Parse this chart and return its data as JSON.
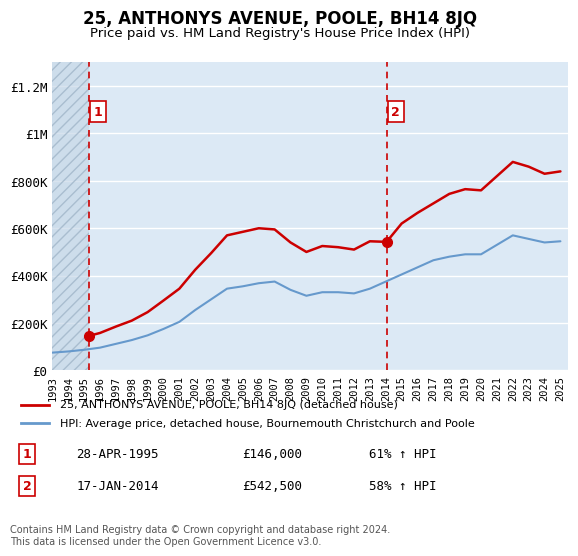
{
  "title": "25, ANTHONYS AVENUE, POOLE, BH14 8JQ",
  "subtitle": "Price paid vs. HM Land Registry's House Price Index (HPI)",
  "ylabel": "",
  "ylim": [
    0,
    1300000
  ],
  "yticks": [
    0,
    200000,
    400000,
    600000,
    800000,
    1000000,
    1200000
  ],
  "ytick_labels": [
    "£0",
    "£200K",
    "£400K",
    "£600K",
    "£800K",
    "£1M",
    "£1.2M"
  ],
  "background_color": "#ffffff",
  "plot_bg_color": "#dce9f5",
  "hatch_color": "#b0c4d8",
  "legend_label_red": "25, ANTHONYS AVENUE, POOLE, BH14 8JQ (detached house)",
  "legend_label_blue": "HPI: Average price, detached house, Bournemouth Christchurch and Poole",
  "sale1_date": "28-APR-1995",
  "sale1_price": 146000,
  "sale1_hpi": "61% ↑ HPI",
  "sale2_date": "17-JAN-2014",
  "sale2_price": 542500,
  "sale2_hpi": "58% ↑ HPI",
  "footnote": "Contains HM Land Registry data © Crown copyright and database right 2024.\nThis data is licensed under the Open Government Licence v3.0.",
  "red_color": "#cc0000",
  "blue_color": "#6699cc",
  "sale_marker_color": "#cc0000",
  "vline_color": "#cc0000",
  "x_start_year": 1993.0,
  "x_end_year": 2025.5,
  "hpi_line": {
    "years": [
      1993,
      1994,
      1995,
      1996,
      1997,
      1998,
      1999,
      2000,
      2001,
      2002,
      2003,
      2004,
      2005,
      2006,
      2007,
      2008,
      2009,
      2010,
      2011,
      2012,
      2013,
      2014,
      2015,
      2016,
      2017,
      2018,
      2019,
      2020,
      2021,
      2022,
      2023,
      2024,
      2025
    ],
    "values": [
      75000,
      80000,
      87000,
      96000,
      112000,
      128000,
      148000,
      175000,
      205000,
      255000,
      300000,
      345000,
      355000,
      368000,
      375000,
      340000,
      315000,
      330000,
      330000,
      325000,
      345000,
      375000,
      405000,
      435000,
      465000,
      480000,
      490000,
      490000,
      530000,
      570000,
      555000,
      540000,
      545000
    ]
  },
  "property_line": {
    "years": [
      1995.32,
      1996,
      1997,
      1998,
      1999,
      2000,
      2001,
      2002,
      2003,
      2004,
      2005,
      2006,
      2007,
      2008,
      2009,
      2010,
      2011,
      2012,
      2013,
      2014.05,
      2015,
      2016,
      2017,
      2018,
      2019,
      2020,
      2021,
      2022,
      2023,
      2024,
      2025
    ],
    "values": [
      146000,
      158000,
      185000,
      210000,
      246000,
      295000,
      345000,
      425000,
      495000,
      570000,
      585000,
      600000,
      595000,
      540000,
      500000,
      525000,
      520000,
      510000,
      545000,
      542500,
      620000,
      665000,
      705000,
      745000,
      765000,
      760000,
      820000,
      880000,
      860000,
      830000,
      840000
    ]
  }
}
